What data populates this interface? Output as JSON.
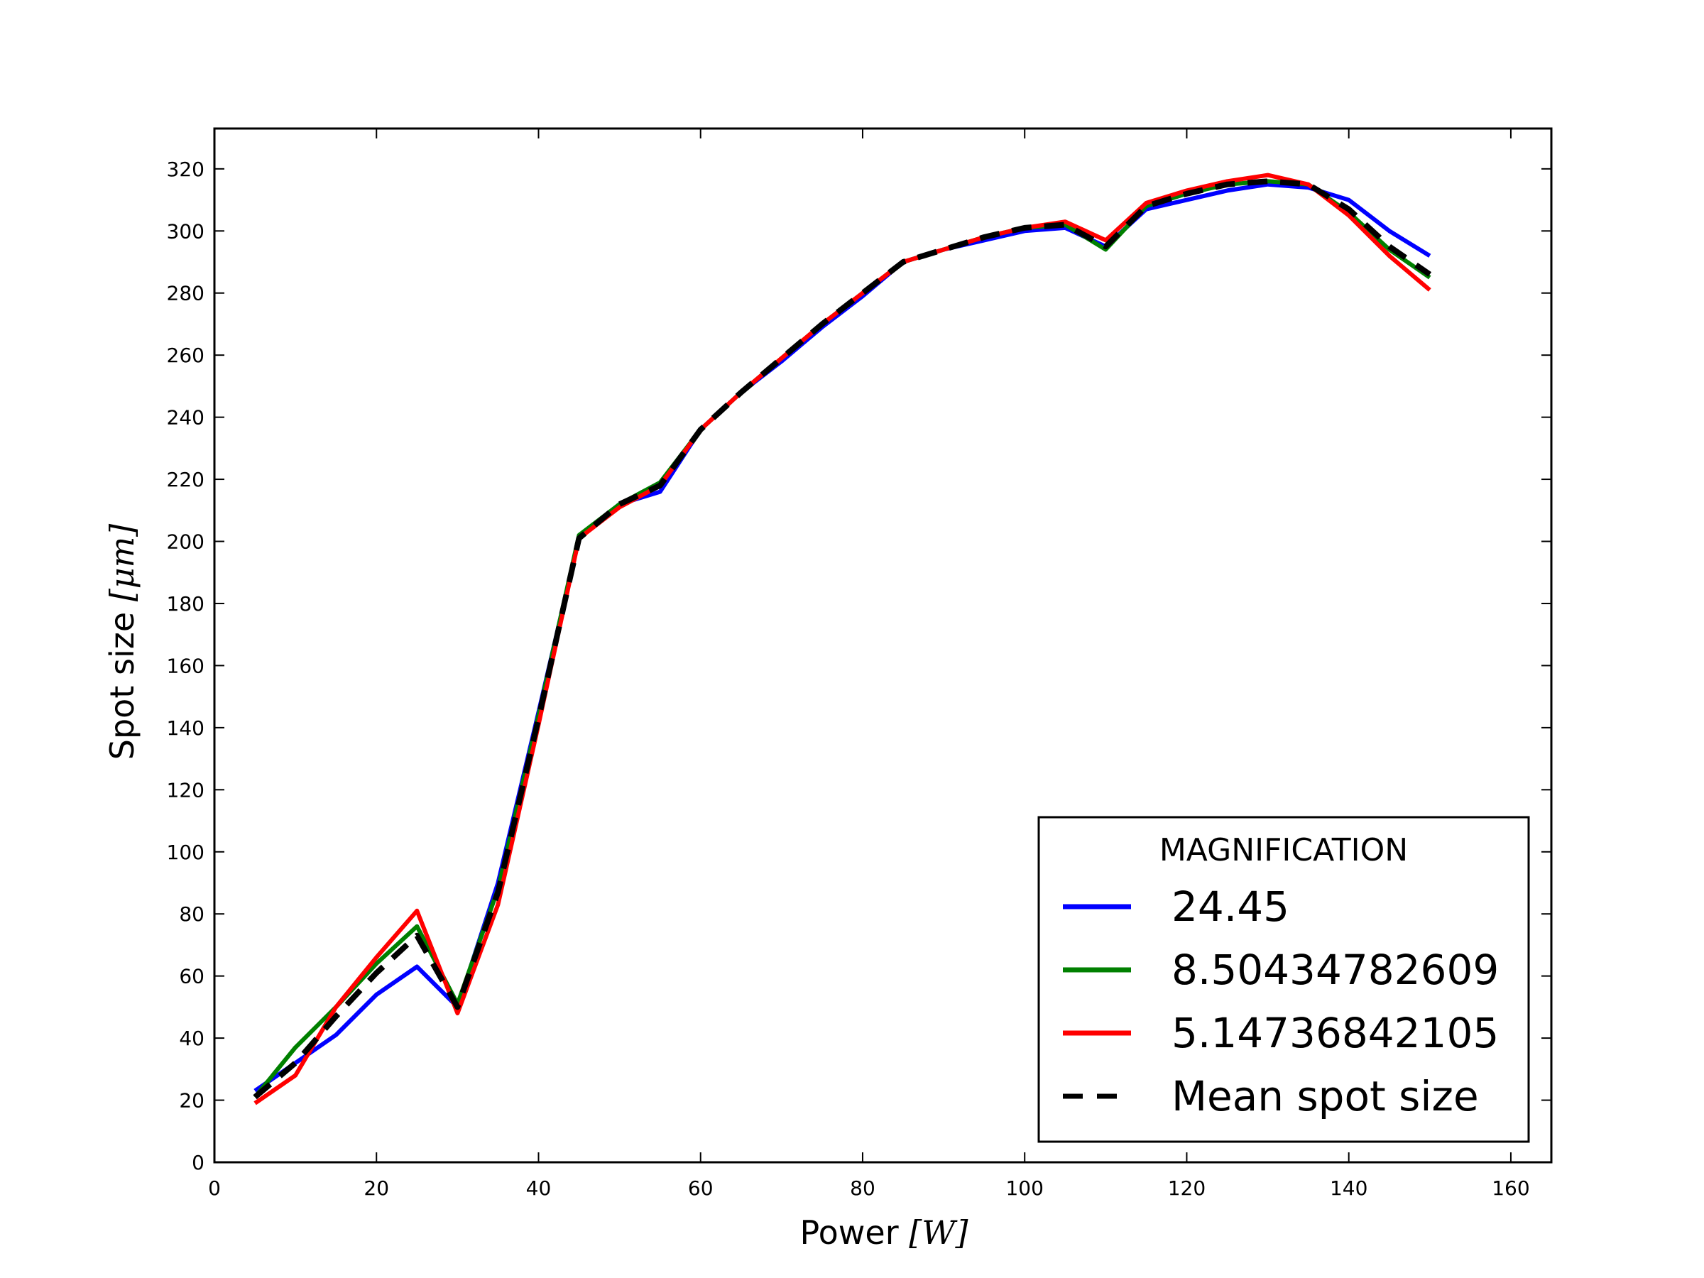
{
  "chart_data": {
    "type": "line",
    "xlabel": "Power [W]",
    "xlabel_text": "Power ",
    "xlabel_unit": "[W]",
    "ylabel": "Spot size [μm]",
    "ylabel_text": "Spot size ",
    "ylabel_unit": "[μm]",
    "xlim": [
      0,
      165
    ],
    "ylim": [
      0,
      333
    ],
    "xticks": [
      0,
      20,
      40,
      60,
      80,
      100,
      120,
      140,
      160
    ],
    "yticks": [
      0,
      20,
      40,
      60,
      80,
      100,
      120,
      140,
      160,
      180,
      200,
      220,
      240,
      260,
      280,
      300,
      320
    ],
    "grid": false,
    "legend": {
      "title": "MAGNIFICATION",
      "placement": "lower-right"
    },
    "x": [
      5,
      10,
      15,
      20,
      25,
      30,
      35,
      40,
      45,
      50,
      55,
      60,
      65,
      70,
      75,
      80,
      85,
      90,
      95,
      100,
      105,
      110,
      115,
      120,
      125,
      130,
      135,
      140,
      145,
      150
    ],
    "series": [
      {
        "name": "24.45",
        "color": "#0000ff",
        "style": "solid",
        "values": [
          23,
          32,
          41,
          54,
          63,
          50,
          90,
          145,
          201,
          212,
          216,
          236,
          248,
          258,
          269,
          279,
          290,
          294,
          297,
          300,
          301,
          295,
          307,
          310,
          313,
          315,
          314,
          310,
          300,
          292
        ]
      },
      {
        "name": "8.50434782609",
        "color": "#008000",
        "style": "solid",
        "values": [
          21,
          37,
          50,
          64,
          76,
          51,
          88,
          144,
          202,
          212,
          219,
          236,
          248,
          259,
          270,
          280,
          290,
          294,
          298,
          301,
          302,
          294,
          308,
          312,
          315,
          316,
          315,
          306,
          294,
          285
        ]
      },
      {
        "name": "5.14736842105",
        "color": "#ff0000",
        "style": "solid",
        "values": [
          19,
          28,
          50,
          66,
          81,
          48,
          83,
          141,
          201,
          211,
          218,
          236,
          248,
          259,
          270,
          280,
          290,
          294,
          298,
          301,
          303,
          297,
          309,
          313,
          316,
          318,
          315,
          305,
          292,
          281
        ]
      },
      {
        "name": "Mean spot size",
        "color": "#000000",
        "style": "dashed",
        "values": [
          21,
          32,
          47,
          61,
          73,
          50,
          87,
          143,
          201,
          212,
          218,
          236,
          248,
          259,
          270,
          280,
          290,
          294,
          298,
          301,
          302,
          295,
          308,
          312,
          315,
          316,
          315,
          307,
          295,
          286
        ]
      }
    ]
  }
}
